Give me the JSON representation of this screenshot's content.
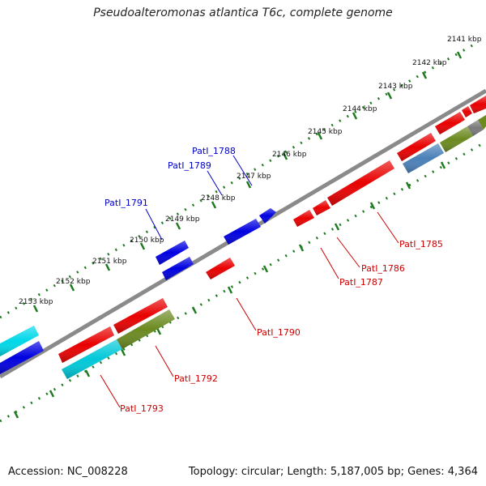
{
  "title": "Pseudoalteromonas atlantica T6c, complete genome",
  "footer": {
    "accession": "Accession: NC_008228",
    "summary": "Topology: circular; Length: 5,187,005 bp; Genes: 4,364"
  },
  "colors": {
    "red": "#e80000",
    "blue": "#0000e0",
    "cyan": "#00c8d8",
    "olive": "#6b8a20",
    "steel": "#4a80b8",
    "gray": "#7a7a7a",
    "backbone": "#8a8a8a",
    "tick": "#1f7a1f",
    "label_blue": "#0000cc",
    "label_red": "#cc0000"
  },
  "kbp_labels": [
    {
      "text": "2141 kbp"
    },
    {
      "text": "2142 kbp"
    },
    {
      "text": "2143 kbp"
    },
    {
      "text": "2144 kbp"
    },
    {
      "text": "2145 kbp"
    },
    {
      "text": "2146 kbp"
    },
    {
      "text": "2147 kbp"
    },
    {
      "text": "2148 kbp"
    },
    {
      "text": "2149 kbp"
    },
    {
      "text": "2150 kbp"
    },
    {
      "text": "2151 kbp"
    },
    {
      "text": "2152 kbp"
    },
    {
      "text": "2153 kbp"
    }
  ],
  "gene_labels": [
    {
      "text": "PatI_1788",
      "color": "blue"
    },
    {
      "text": "PatI_1789",
      "color": "blue"
    },
    {
      "text": "PatI_1791",
      "color": "blue"
    },
    {
      "text": "PatI_1785",
      "color": "red"
    },
    {
      "text": "PatI_1786",
      "color": "red"
    },
    {
      "text": "PatI_1787",
      "color": "red"
    },
    {
      "text": "PatI_1790",
      "color": "red"
    },
    {
      "text": "PatI_1792",
      "color": "red"
    },
    {
      "text": "PatI_1793",
      "color": "red"
    }
  ]
}
